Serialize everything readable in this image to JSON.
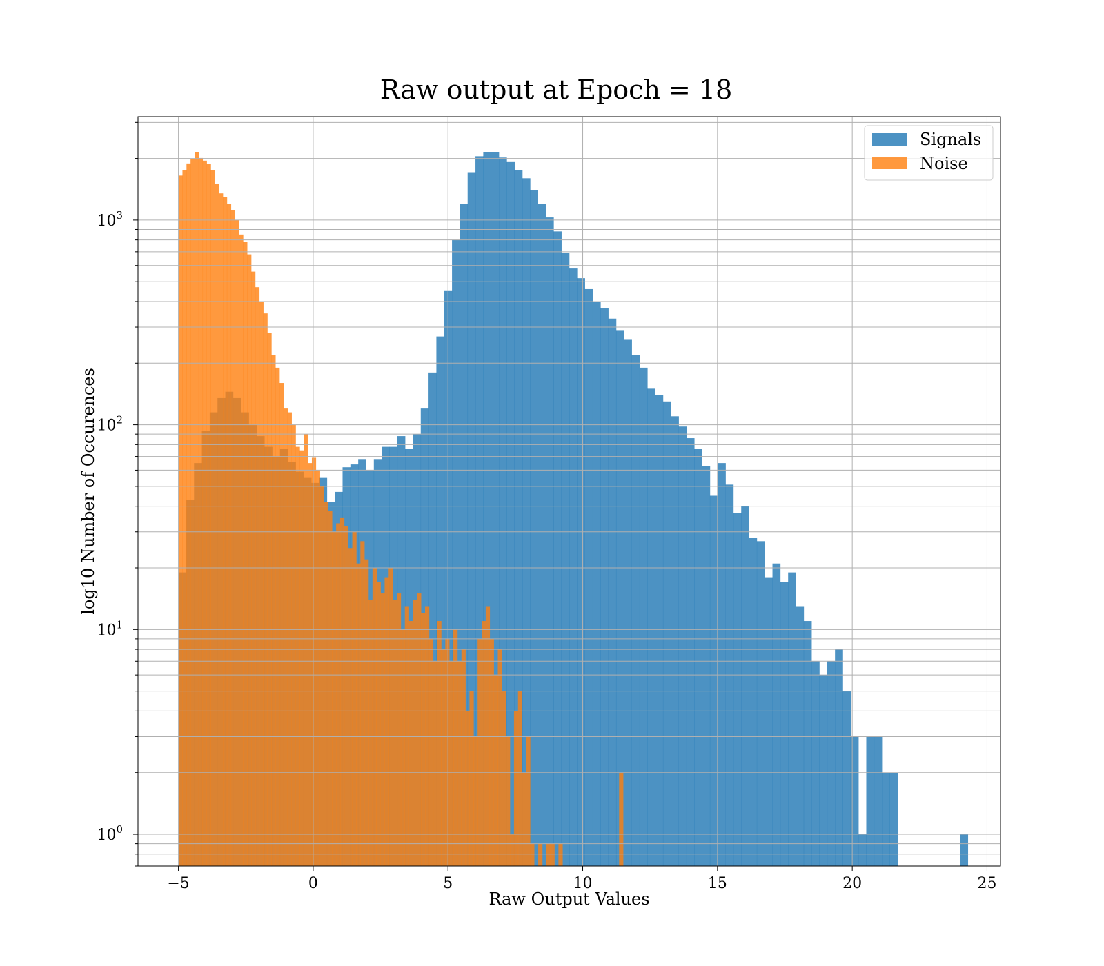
{
  "chart_data": {
    "type": "bar",
    "title": "Raw output at Epoch = 18",
    "xlabel": "Raw Output Values",
    "ylabel": "log10 Number of Occurences",
    "xlim": [
      -6.5,
      25.5
    ],
    "ylim": [
      0.7,
      3200
    ],
    "yscale": "log",
    "grid": true,
    "legend_position": "top-right",
    "x_ticks": [
      {
        "value": -5,
        "label": "−5"
      },
      {
        "value": 0,
        "label": "0"
      },
      {
        "value": 5,
        "label": "5"
      },
      {
        "value": 10,
        "label": "10"
      },
      {
        "value": 15,
        "label": "15"
      },
      {
        "value": 20,
        "label": "20"
      },
      {
        "value": 25,
        "label": "25"
      }
    ],
    "y_ticks": [
      {
        "value": 1,
        "base": "10",
        "exp": "0"
      },
      {
        "value": 10,
        "base": "10",
        "exp": "1"
      },
      {
        "value": 100,
        "base": "10",
        "exp": "2"
      },
      {
        "value": 1000,
        "base": "10",
        "exp": "3"
      }
    ],
    "series": [
      {
        "name": "Signals",
        "color": "#1f77b4",
        "opacity": 0.8,
        "bin_start": -5.0,
        "bin_width": 0.29,
        "values": [
          19,
          43,
          65,
          93,
          115,
          135,
          145,
          135,
          115,
          100,
          88,
          78,
          70,
          76,
          66,
          59,
          55,
          52,
          55,
          42,
          47,
          62,
          64,
          68,
          60,
          68,
          78,
          78,
          88,
          76,
          90,
          120,
          180,
          270,
          450,
          800,
          1200,
          1700,
          2050,
          2150,
          2150,
          2020,
          1920,
          1760,
          1600,
          1400,
          1200,
          1030,
          880,
          690,
          580,
          520,
          460,
          400,
          370,
          330,
          290,
          260,
          220,
          190,
          150,
          140,
          130,
          110,
          98,
          86,
          76,
          63,
          45,
          65,
          51,
          37,
          40,
          28,
          27,
          18,
          21,
          17,
          19,
          13,
          11,
          7,
          6,
          7,
          8,
          5,
          3,
          1,
          3,
          3,
          2,
          2,
          0,
          0,
          0,
          0,
          0,
          0,
          0,
          0,
          1
        ]
      },
      {
        "name": "Noise",
        "color": "#ff7f0e",
        "opacity": 0.8,
        "bin_start": -5.0,
        "bin_width": 0.15,
        "values": [
          1650,
          1750,
          1890,
          2000,
          2150,
          2010,
          1950,
          1880,
          1750,
          1500,
          1350,
          1300,
          1200,
          1120,
          1000,
          850,
          780,
          680,
          560,
          470,
          400,
          350,
          280,
          220,
          190,
          160,
          120,
          115,
          100,
          78,
          75,
          90,
          65,
          69,
          60,
          50,
          42,
          38,
          30,
          33,
          35,
          32,
          25,
          30,
          21,
          27,
          22,
          14,
          20,
          17,
          15,
          18,
          20,
          14,
          15,
          10,
          13,
          11,
          14,
          15,
          12,
          13,
          9,
          7,
          11,
          8,
          9,
          7,
          10,
          7,
          8,
          4,
          5,
          3,
          9,
          11,
          13,
          9,
          6,
          8,
          5,
          3,
          1,
          4,
          5,
          2,
          3,
          0.9,
          0.1,
          0.9,
          0.1,
          0.9,
          0.9,
          0.1,
          0.9,
          0.1,
          0.1,
          0.1,
          0.1,
          0.1,
          0.1,
          0.1,
          0.1,
          0.1,
          0.1,
          0.1,
          0.1,
          0.1,
          0.1,
          2
        ]
      }
    ]
  }
}
